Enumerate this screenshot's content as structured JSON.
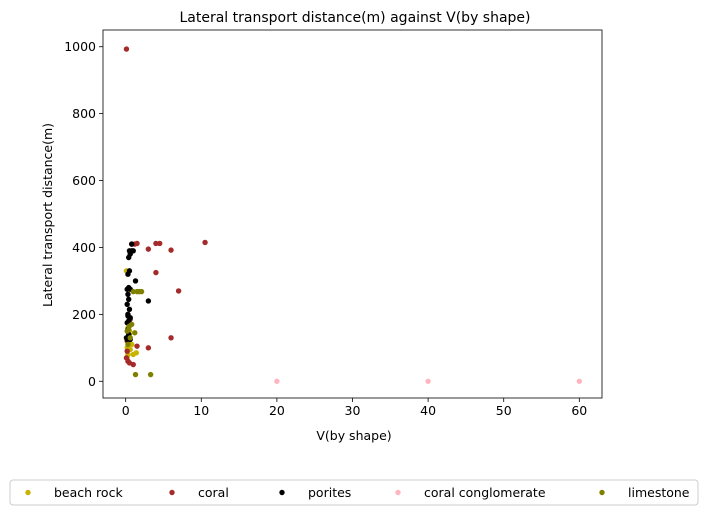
{
  "chart_data": {
    "type": "scatter",
    "title": "Lateral transport distance(m) against V(by shape)",
    "xlabel": "V(by shape)",
    "ylabel": "Lateral transport distance(m)",
    "xlim": [
      -3,
      63
    ],
    "ylim": [
      -50,
      1050
    ],
    "xticks": [
      0,
      10,
      20,
      30,
      40,
      50,
      60
    ],
    "yticks": [
      0,
      200,
      400,
      600,
      800,
      1000
    ],
    "grid": false,
    "legend_position": "bottom",
    "series": [
      {
        "name": "beach rock",
        "color": "#c8b400",
        "points": [
          [
            0.1,
            330
          ],
          [
            0.3,
            160
          ],
          [
            0.5,
            140
          ],
          [
            0.4,
            120
          ],
          [
            0.2,
            100
          ],
          [
            0.6,
            95
          ],
          [
            0.3,
            80
          ],
          [
            1.0,
            80
          ],
          [
            1.4,
            85
          ],
          [
            0.2,
            70
          ],
          [
            0.8,
            110
          ],
          [
            0.5,
            150
          ]
        ]
      },
      {
        "name": "coral",
        "color": "#a52a2a",
        "points": [
          [
            0.1,
            993
          ],
          [
            0.2,
            90
          ],
          [
            0.1,
            70
          ],
          [
            0.3,
            60
          ],
          [
            0.5,
            55
          ],
          [
            0.3,
            200
          ],
          [
            0.6,
            185
          ],
          [
            1.0,
            50
          ],
          [
            1.5,
            105
          ],
          [
            3.0,
            100
          ],
          [
            6.0,
            130
          ],
          [
            4.0,
            325
          ],
          [
            7.0,
            270
          ],
          [
            3.0,
            395
          ],
          [
            4.0,
            412
          ],
          [
            4.5,
            412
          ],
          [
            6.0,
            392
          ],
          [
            10.5,
            415
          ],
          [
            1.5,
            412
          ],
          [
            0.8,
            410
          ],
          [
            1.2,
            410
          ],
          [
            0.2,
            120
          ],
          [
            0.4,
            175
          ]
        ]
      },
      {
        "name": "porites",
        "color": "#000000",
        "points": [
          [
            0.1,
            130
          ],
          [
            0.2,
            125
          ],
          [
            0.3,
            155
          ],
          [
            0.2,
            175
          ],
          [
            0.4,
            180
          ],
          [
            0.6,
            190
          ],
          [
            0.3,
            200
          ],
          [
            0.5,
            215
          ],
          [
            0.2,
            230
          ],
          [
            0.4,
            245
          ],
          [
            0.3,
            260
          ],
          [
            0.2,
            275
          ],
          [
            0.4,
            280
          ],
          [
            0.6,
            275
          ],
          [
            0.3,
            320
          ],
          [
            0.5,
            330
          ],
          [
            0.4,
            370
          ],
          [
            0.6,
            380
          ],
          [
            0.5,
            390
          ],
          [
            0.8,
            390
          ],
          [
            1.0,
            390
          ],
          [
            0.8,
            410
          ],
          [
            1.3,
            300
          ],
          [
            3.0,
            240
          ],
          [
            0.3,
            195
          ],
          [
            0.7,
            170
          ],
          [
            0.4,
            140
          ],
          [
            0.6,
            125
          ]
        ]
      },
      {
        "name": "coral conglomerate",
        "color": "#ffb6c1",
        "points": [
          [
            20,
            0
          ],
          [
            40,
            0
          ],
          [
            60,
            0
          ]
        ]
      },
      {
        "name": "limestone",
        "color": "#808000",
        "points": [
          [
            1.3,
            20
          ],
          [
            3.3,
            20
          ],
          [
            0.2,
            150
          ],
          [
            0.5,
            165
          ],
          [
            0.8,
            170
          ],
          [
            0.4,
            155
          ],
          [
            1.2,
            145
          ],
          [
            1.8,
            268
          ],
          [
            2.1,
            268
          ],
          [
            1.5,
            268
          ],
          [
            1.0,
            268
          ],
          [
            0.6,
            130
          ],
          [
            0.3,
            110
          ]
        ]
      }
    ]
  }
}
